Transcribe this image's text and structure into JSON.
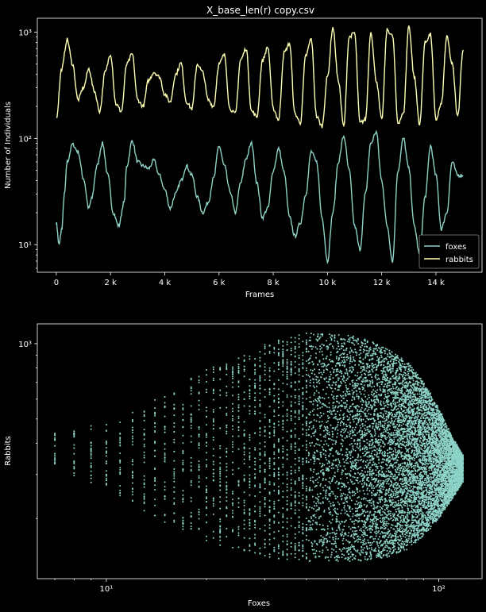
{
  "chart_data": [
    {
      "type": "line",
      "title": "X_base_len(r) copy.csv",
      "xlabel": "Frames",
      "ylabel": "Number of Individuals",
      "xscale": "linear",
      "yscale": "log",
      "xlim": [
        -700,
        15700
      ],
      "ylim": [
        5.5,
        1350
      ],
      "x_ticks": [
        0,
        2000,
        4000,
        6000,
        8000,
        10000,
        12000,
        14000
      ],
      "x_tick_labels": [
        "0",
        "2 k",
        "4 k",
        "6 k",
        "8 k",
        "10 k",
        "12 k",
        "14 k"
      ],
      "y_ticks": [
        10,
        100,
        1000
      ],
      "y_tick_labels": [
        "10¹",
        "10²",
        "10³"
      ],
      "legend": {
        "location": "lower-right",
        "entries": [
          "foxes",
          "rabbits"
        ]
      },
      "grid": false,
      "series": [
        {
          "name": "foxes",
          "color": "#8dd3c7",
          "x": [
            0,
            100,
            200,
            300,
            400,
            600,
            800,
            1000,
            1200,
            1300,
            1500,
            1700,
            1900,
            2100,
            2300,
            2500,
            2600,
            2800,
            3000,
            3200,
            3400,
            3600,
            3800,
            4000,
            4200,
            4400,
            4600,
            4800,
            5000,
            5200,
            5400,
            5600,
            5800,
            6000,
            6200,
            6400,
            6600,
            6800,
            7000,
            7200,
            7400,
            7600,
            7800,
            8000,
            8200,
            8400,
            8600,
            8800,
            9000,
            9200,
            9400,
            9600,
            9800,
            10000,
            10200,
            10400,
            10600,
            10800,
            11000,
            11200,
            11400,
            11600,
            11800,
            12000,
            12200,
            12400,
            12600,
            12800,
            13000,
            13200,
            13400,
            13600,
            13800,
            14000,
            14200,
            14400,
            14600,
            14800,
            15000
          ],
          "y": [
            16,
            10,
            14,
            30,
            60,
            88,
            75,
            42,
            22,
            27,
            55,
            90,
            45,
            20,
            15,
            25,
            55,
            95,
            60,
            55,
            52,
            62,
            45,
            33,
            22,
            30,
            40,
            55,
            45,
            28,
            20,
            25,
            42,
            85,
            55,
            32,
            20,
            38,
            65,
            90,
            38,
            18,
            22,
            50,
            80,
            48,
            18,
            12,
            16,
            30,
            75,
            60,
            18,
            7,
            20,
            60,
            105,
            50,
            15,
            9,
            30,
            90,
            115,
            40,
            15,
            7,
            50,
            100,
            52,
            15,
            8,
            28,
            85,
            45,
            14,
            20,
            60,
            45,
            45
          ]
        },
        {
          "name": "rabbits",
          "color": "#ffffb3",
          "x": [
            0,
            200,
            400,
            600,
            800,
            1000,
            1200,
            1400,
            1600,
            1800,
            2000,
            2200,
            2400,
            2600,
            2800,
            3000,
            3200,
            3400,
            3600,
            3800,
            4000,
            4200,
            4400,
            4600,
            4800,
            5000,
            5200,
            5400,
            5600,
            5800,
            6000,
            6200,
            6400,
            6600,
            6800,
            7000,
            7200,
            7400,
            7600,
            7800,
            8000,
            8200,
            8400,
            8600,
            8800,
            9000,
            9200,
            9400,
            9600,
            9800,
            10000,
            10200,
            10400,
            10600,
            10800,
            11000,
            11200,
            11400,
            11600,
            11800,
            12000,
            12200,
            12400,
            12600,
            12800,
            13000,
            13200,
            13400,
            13600,
            13800,
            14000,
            14200,
            14400,
            14600,
            14800,
            15000
          ],
          "y": [
            155,
            450,
            850,
            500,
            230,
            300,
            450,
            280,
            180,
            420,
            620,
            210,
            180,
            500,
            620,
            230,
            200,
            350,
            420,
            380,
            260,
            220,
            400,
            510,
            220,
            190,
            500,
            420,
            230,
            200,
            500,
            610,
            190,
            170,
            550,
            700,
            180,
            160,
            540,
            720,
            190,
            150,
            640,
            780,
            170,
            140,
            600,
            860,
            160,
            130,
            380,
            1100,
            350,
            130,
            900,
            980,
            140,
            150,
            1000,
            350,
            150,
            1050,
            920,
            140,
            170,
            1150,
            380,
            135,
            800,
            950,
            150,
            210,
            900,
            500,
            160,
            680
          ]
        }
      ]
    },
    {
      "type": "scatter",
      "xlabel": "Foxes",
      "ylabel": "Rabbits",
      "xscale": "log",
      "yscale": "log",
      "xlim": [
        6.2,
        135
      ],
      "ylim": [
        115,
        1200
      ],
      "x_ticks": [
        10,
        100
      ],
      "x_tick_labels": [
        "10¹",
        "10²"
      ],
      "y_ticks": [
        1000
      ],
      "y_tick_labels": [
        "10³"
      ],
      "grid": false,
      "color": "#8dd3c7",
      "description_points": [
        {
          "fox": 7,
          "rabbit_min": 330,
          "rabbit_max": 440
        },
        {
          "fox": 8,
          "rabbit_min": 290,
          "rabbit_max": 450
        },
        {
          "fox": 9,
          "rabbit_min": 270,
          "rabbit_max": 470
        },
        {
          "fox": 10,
          "rabbit_min": 260,
          "rabbit_max": 480
        },
        {
          "fox": 12,
          "rabbit_min": 230,
          "rabbit_max": 540
        },
        {
          "fox": 14,
          "rabbit_min": 200,
          "rabbit_max": 600
        },
        {
          "fox": 17,
          "rabbit_min": 180,
          "rabbit_max": 700
        },
        {
          "fox": 20,
          "rabbit_min": 160,
          "rabbit_max": 800
        },
        {
          "fox": 25,
          "rabbit_min": 150,
          "rabbit_max": 900
        },
        {
          "fox": 30,
          "rabbit_min": 140,
          "rabbit_max": 1000
        },
        {
          "fox": 40,
          "rabbit_min": 135,
          "rabbit_max": 1100
        },
        {
          "fox": 50,
          "rabbit_min": 135,
          "rabbit_max": 1100
        },
        {
          "fox": 60,
          "rabbit_min": 135,
          "rabbit_max": 1050
        },
        {
          "fox": 70,
          "rabbit_min": 140,
          "rabbit_max": 950
        },
        {
          "fox": 80,
          "rabbit_min": 150,
          "rabbit_max": 850
        },
        {
          "fox": 90,
          "rabbit_min": 170,
          "rabbit_max": 700
        },
        {
          "fox": 100,
          "rabbit_min": 200,
          "rabbit_max": 550
        },
        {
          "fox": 110,
          "rabbit_min": 240,
          "rabbit_max": 420
        },
        {
          "fox": 118,
          "rabbit_min": 280,
          "rabbit_max": 360
        }
      ]
    }
  ]
}
